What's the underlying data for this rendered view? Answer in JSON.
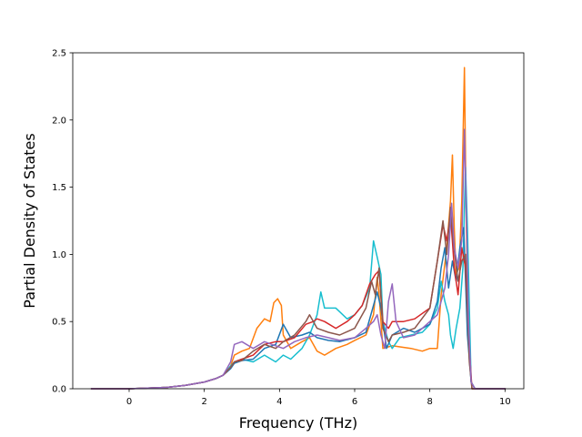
{
  "chart_data": {
    "type": "line",
    "title": "",
    "xlabel": "Frequency (THz)",
    "ylabel": "Partial Density of States",
    "xlim": [
      -1.5,
      10.5
    ],
    "ylim": [
      0.0,
      2.5
    ],
    "xticks": [
      0,
      2,
      4,
      6,
      8,
      10
    ],
    "yticks": [
      0.0,
      0.5,
      1.0,
      1.5,
      2.0,
      2.5
    ],
    "xtick_labels": [
      "0",
      "2",
      "4",
      "6",
      "8",
      "10"
    ],
    "ytick_labels": [
      "0.0",
      "0.5",
      "1.0",
      "1.5",
      "2.0",
      "2.5"
    ],
    "grid": false,
    "legend": "none",
    "series": [
      {
        "color": "#ff7f0e",
        "points": [
          [
            -1.0,
            0.0
          ],
          [
            0.0,
            0.0
          ],
          [
            0.5,
            0.005
          ],
          [
            1.0,
            0.01
          ],
          [
            1.5,
            0.025
          ],
          [
            2.0,
            0.05
          ],
          [
            2.3,
            0.075
          ],
          [
            2.5,
            0.1
          ],
          [
            2.7,
            0.17
          ],
          [
            2.8,
            0.25
          ],
          [
            3.0,
            0.28
          ],
          [
            3.2,
            0.3
          ],
          [
            3.4,
            0.45
          ],
          [
            3.6,
            0.52
          ],
          [
            3.75,
            0.5
          ],
          [
            3.85,
            0.64
          ],
          [
            3.95,
            0.67
          ],
          [
            4.05,
            0.62
          ],
          [
            4.1,
            0.4
          ],
          [
            4.3,
            0.3
          ],
          [
            4.6,
            0.35
          ],
          [
            4.8,
            0.38
          ],
          [
            5.0,
            0.28
          ],
          [
            5.2,
            0.25
          ],
          [
            5.5,
            0.3
          ],
          [
            5.8,
            0.33
          ],
          [
            6.0,
            0.36
          ],
          [
            6.3,
            0.4
          ],
          [
            6.5,
            0.55
          ],
          [
            6.6,
            0.83
          ],
          [
            6.65,
            0.7
          ],
          [
            6.75,
            0.3
          ],
          [
            7.0,
            0.32
          ],
          [
            7.5,
            0.3
          ],
          [
            7.8,
            0.28
          ],
          [
            8.0,
            0.3
          ],
          [
            8.2,
            0.3
          ],
          [
            8.3,
            0.7
          ],
          [
            8.45,
            1.05
          ],
          [
            8.55,
            1.4
          ],
          [
            8.6,
            1.74
          ],
          [
            8.65,
            1.2
          ],
          [
            8.7,
            0.85
          ],
          [
            8.78,
            0.9
          ],
          [
            8.85,
            1.4
          ],
          [
            8.92,
            2.39
          ],
          [
            8.97,
            1.2
          ],
          [
            9.03,
            0.5
          ],
          [
            9.1,
            0.05
          ],
          [
            9.2,
            0.0
          ],
          [
            10.0,
            0.0
          ]
        ]
      },
      {
        "color": "#17becf",
        "points": [
          [
            -1.0,
            0.0
          ],
          [
            0.0,
            0.0
          ],
          [
            0.5,
            0.005
          ],
          [
            1.0,
            0.01
          ],
          [
            1.5,
            0.025
          ],
          [
            2.0,
            0.05
          ],
          [
            2.3,
            0.075
          ],
          [
            2.5,
            0.1
          ],
          [
            2.7,
            0.17
          ],
          [
            2.8,
            0.2
          ],
          [
            3.0,
            0.22
          ],
          [
            3.3,
            0.2
          ],
          [
            3.6,
            0.25
          ],
          [
            3.9,
            0.2
          ],
          [
            4.1,
            0.25
          ],
          [
            4.3,
            0.22
          ],
          [
            4.6,
            0.3
          ],
          [
            4.8,
            0.4
          ],
          [
            5.0,
            0.55
          ],
          [
            5.1,
            0.72
          ],
          [
            5.2,
            0.6
          ],
          [
            5.5,
            0.6
          ],
          [
            5.8,
            0.52
          ],
          [
            6.0,
            0.55
          ],
          [
            6.2,
            0.62
          ],
          [
            6.4,
            0.75
          ],
          [
            6.5,
            1.1
          ],
          [
            6.6,
            0.98
          ],
          [
            6.7,
            0.85
          ],
          [
            6.75,
            0.5
          ],
          [
            6.9,
            0.35
          ],
          [
            7.0,
            0.3
          ],
          [
            7.2,
            0.38
          ],
          [
            7.5,
            0.4
          ],
          [
            7.8,
            0.42
          ],
          [
            8.0,
            0.48
          ],
          [
            8.2,
            0.6
          ],
          [
            8.3,
            0.8
          ],
          [
            8.4,
            0.65
          ],
          [
            8.5,
            0.55
          ],
          [
            8.55,
            0.4
          ],
          [
            8.62,
            0.3
          ],
          [
            8.7,
            0.45
          ],
          [
            8.8,
            0.6
          ],
          [
            8.88,
            0.9
          ],
          [
            8.95,
            1.65
          ],
          [
            9.0,
            1.2
          ],
          [
            9.05,
            0.6
          ],
          [
            9.1,
            0.05
          ],
          [
            9.2,
            0.0
          ],
          [
            10.0,
            0.0
          ]
        ]
      },
      {
        "color": "#1f77b4",
        "points": [
          [
            -1.0,
            0.0
          ],
          [
            0.0,
            0.0
          ],
          [
            0.5,
            0.005
          ],
          [
            1.0,
            0.01
          ],
          [
            1.5,
            0.025
          ],
          [
            2.0,
            0.05
          ],
          [
            2.3,
            0.075
          ],
          [
            2.5,
            0.1
          ],
          [
            2.7,
            0.15
          ],
          [
            2.8,
            0.19
          ],
          [
            3.0,
            0.21
          ],
          [
            3.3,
            0.22
          ],
          [
            3.6,
            0.3
          ],
          [
            3.9,
            0.33
          ],
          [
            4.1,
            0.48
          ],
          [
            4.3,
            0.38
          ],
          [
            4.6,
            0.4
          ],
          [
            4.8,
            0.42
          ],
          [
            5.0,
            0.38
          ],
          [
            5.3,
            0.36
          ],
          [
            5.6,
            0.35
          ],
          [
            6.0,
            0.38
          ],
          [
            6.3,
            0.42
          ],
          [
            6.5,
            0.62
          ],
          [
            6.6,
            0.72
          ],
          [
            6.7,
            0.6
          ],
          [
            6.85,
            0.3
          ],
          [
            7.0,
            0.4
          ],
          [
            7.3,
            0.45
          ],
          [
            7.6,
            0.42
          ],
          [
            8.0,
            0.48
          ],
          [
            8.2,
            0.65
          ],
          [
            8.3,
            0.9
          ],
          [
            8.4,
            1.05
          ],
          [
            8.5,
            0.75
          ],
          [
            8.6,
            0.95
          ],
          [
            8.7,
            0.8
          ],
          [
            8.8,
            1.05
          ],
          [
            8.9,
            1.2
          ],
          [
            9.0,
            0.4
          ],
          [
            9.1,
            0.05
          ],
          [
            9.2,
            0.0
          ],
          [
            10.0,
            0.0
          ]
        ]
      },
      {
        "color": "#d62728",
        "points": [
          [
            -1.0,
            0.0
          ],
          [
            0.0,
            0.0
          ],
          [
            0.5,
            0.005
          ],
          [
            1.0,
            0.01
          ],
          [
            1.5,
            0.025
          ],
          [
            2.0,
            0.05
          ],
          [
            2.3,
            0.075
          ],
          [
            2.5,
            0.1
          ],
          [
            2.7,
            0.16
          ],
          [
            2.8,
            0.2
          ],
          [
            3.0,
            0.22
          ],
          [
            3.3,
            0.25
          ],
          [
            3.6,
            0.33
          ],
          [
            3.9,
            0.35
          ],
          [
            4.1,
            0.35
          ],
          [
            4.4,
            0.38
          ],
          [
            4.7,
            0.48
          ],
          [
            4.9,
            0.5
          ],
          [
            5.0,
            0.52
          ],
          [
            5.2,
            0.5
          ],
          [
            5.5,
            0.45
          ],
          [
            5.8,
            0.5
          ],
          [
            6.0,
            0.55
          ],
          [
            6.2,
            0.62
          ],
          [
            6.4,
            0.78
          ],
          [
            6.55,
            0.85
          ],
          [
            6.65,
            0.88
          ],
          [
            6.75,
            0.5
          ],
          [
            6.9,
            0.45
          ],
          [
            7.0,
            0.5
          ],
          [
            7.3,
            0.5
          ],
          [
            7.6,
            0.52
          ],
          [
            8.0,
            0.6
          ],
          [
            8.2,
            0.95
          ],
          [
            8.35,
            1.22
          ],
          [
            8.45,
            1.1
          ],
          [
            8.55,
            1.3
          ],
          [
            8.65,
            0.9
          ],
          [
            8.75,
            0.7
          ],
          [
            8.85,
            1.05
          ],
          [
            8.95,
            0.9
          ],
          [
            9.05,
            0.3
          ],
          [
            9.12,
            0.0
          ],
          [
            10.0,
            0.0
          ]
        ]
      },
      {
        "color": "#8c564b",
        "points": [
          [
            -1.0,
            0.0
          ],
          [
            0.0,
            0.0
          ],
          [
            0.5,
            0.005
          ],
          [
            1.0,
            0.01
          ],
          [
            1.5,
            0.025
          ],
          [
            2.0,
            0.05
          ],
          [
            2.3,
            0.075
          ],
          [
            2.5,
            0.1
          ],
          [
            2.7,
            0.16
          ],
          [
            2.8,
            0.2
          ],
          [
            3.0,
            0.21
          ],
          [
            3.3,
            0.28
          ],
          [
            3.6,
            0.33
          ],
          [
            3.9,
            0.3
          ],
          [
            4.1,
            0.35
          ],
          [
            4.4,
            0.4
          ],
          [
            4.7,
            0.5
          ],
          [
            4.8,
            0.55
          ],
          [
            5.0,
            0.45
          ],
          [
            5.3,
            0.42
          ],
          [
            5.6,
            0.4
          ],
          [
            6.0,
            0.45
          ],
          [
            6.3,
            0.6
          ],
          [
            6.45,
            0.8
          ],
          [
            6.55,
            0.7
          ],
          [
            6.65,
            0.9
          ],
          [
            6.75,
            0.45
          ],
          [
            6.9,
            0.35
          ],
          [
            7.0,
            0.4
          ],
          [
            7.3,
            0.42
          ],
          [
            7.6,
            0.45
          ],
          [
            8.0,
            0.6
          ],
          [
            8.2,
            0.95
          ],
          [
            8.35,
            1.25
          ],
          [
            8.45,
            1.0
          ],
          [
            8.55,
            1.35
          ],
          [
            8.62,
            1.1
          ],
          [
            8.75,
            0.8
          ],
          [
            8.85,
            0.95
          ],
          [
            8.95,
            1.0
          ],
          [
            9.05,
            0.2
          ],
          [
            9.12,
            0.0
          ],
          [
            10.0,
            0.0
          ]
        ]
      },
      {
        "color": "#9467bd",
        "points": [
          [
            -1.0,
            0.0
          ],
          [
            0.0,
            0.0
          ],
          [
            0.5,
            0.005
          ],
          [
            1.0,
            0.01
          ],
          [
            1.5,
            0.025
          ],
          [
            2.0,
            0.05
          ],
          [
            2.3,
            0.075
          ],
          [
            2.5,
            0.1
          ],
          [
            2.7,
            0.2
          ],
          [
            2.8,
            0.33
          ],
          [
            3.0,
            0.35
          ],
          [
            3.3,
            0.3
          ],
          [
            3.6,
            0.35
          ],
          [
            3.9,
            0.32
          ],
          [
            4.1,
            0.3
          ],
          [
            4.4,
            0.35
          ],
          [
            4.7,
            0.38
          ],
          [
            5.0,
            0.4
          ],
          [
            5.3,
            0.38
          ],
          [
            5.6,
            0.36
          ],
          [
            6.0,
            0.38
          ],
          [
            6.3,
            0.45
          ],
          [
            6.5,
            0.5
          ],
          [
            6.6,
            0.55
          ],
          [
            6.7,
            0.4
          ],
          [
            6.8,
            0.3
          ],
          [
            6.9,
            0.65
          ],
          [
            7.0,
            0.78
          ],
          [
            7.1,
            0.5
          ],
          [
            7.3,
            0.38
          ],
          [
            7.6,
            0.4
          ],
          [
            8.0,
            0.5
          ],
          [
            8.2,
            0.55
          ],
          [
            8.3,
            0.65
          ],
          [
            8.4,
            0.75
          ],
          [
            8.5,
            1.0
          ],
          [
            8.58,
            1.38
          ],
          [
            8.65,
            1.05
          ],
          [
            8.75,
            0.9
          ],
          [
            8.85,
            1.1
          ],
          [
            8.92,
            1.93
          ],
          [
            8.97,
            1.3
          ],
          [
            9.03,
            0.5
          ],
          [
            9.1,
            0.05
          ],
          [
            9.2,
            0.0
          ],
          [
            10.0,
            0.0
          ]
        ]
      }
    ]
  }
}
